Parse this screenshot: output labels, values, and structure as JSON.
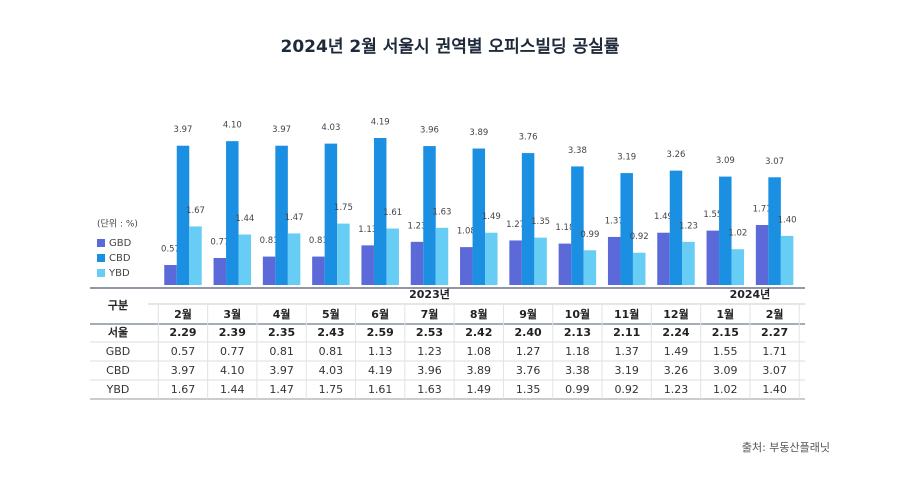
{
  "chart_data": {
    "type": "bar",
    "title": "2024년 2월 서울시 권역별 오피스빌딩 공실률",
    "unit_label": "(단위 : %)",
    "categories": [
      "2월",
      "3월",
      "4월",
      "5월",
      "6월",
      "7월",
      "8월",
      "9월",
      "10월",
      "11월",
      "12월",
      "1월",
      "2월"
    ],
    "year_labels": [
      "2023년",
      "2024년"
    ],
    "series": [
      {
        "name": "GBD",
        "color": "#5b6ad8",
        "values": [
          0.57,
          0.77,
          0.81,
          0.81,
          1.13,
          1.23,
          1.08,
          1.27,
          1.18,
          1.37,
          1.49,
          1.55,
          1.71
        ],
        "value_labels": [
          "0.57",
          "0.77",
          "0.81",
          "0.81",
          "1.13",
          "1.23",
          "1.08",
          "1.27",
          "1.18",
          "1.37",
          "1.49",
          "1.55",
          "1.71"
        ]
      },
      {
        "name": "CBD",
        "color": "#1b8fe2",
        "values": [
          3.97,
          4.1,
          3.97,
          4.03,
          4.19,
          3.96,
          3.89,
          3.76,
          3.38,
          3.19,
          3.26,
          3.09,
          3.07
        ],
        "value_labels": [
          "3.97",
          "4.10",
          "3.97",
          "4.03",
          "4.19",
          "3.96",
          "3.89",
          "3.76",
          "3.38",
          "3.19",
          "3.26",
          "3.09",
          "3.07"
        ]
      },
      {
        "name": "YBD",
        "color": "#68cdf5",
        "values": [
          1.67,
          1.44,
          1.47,
          1.75,
          1.61,
          1.63,
          1.49,
          1.35,
          0.99,
          0.92,
          1.23,
          1.02,
          1.4
        ],
        "value_labels": [
          "1.67",
          "1.44",
          "1.47",
          "1.75",
          "1.61",
          "1.63",
          "1.49",
          "1.35",
          "0.99",
          "0.92",
          "1.23",
          "1.02",
          "1.40"
        ]
      }
    ],
    "table": {
      "header": "구분",
      "total": {
        "name": "서울",
        "values": [
          2.29,
          2.39,
          2.35,
          2.43,
          2.59,
          2.53,
          2.42,
          2.4,
          2.13,
          2.11,
          2.24,
          2.15,
          2.27
        ],
        "value_labels": [
          "2.29",
          "2.39",
          "2.35",
          "2.43",
          "2.59",
          "2.53",
          "2.42",
          "2.40",
          "2.13",
          "2.11",
          "2.24",
          "2.15",
          "2.27"
        ]
      }
    },
    "source": "출처: 부동산플래닛"
  }
}
